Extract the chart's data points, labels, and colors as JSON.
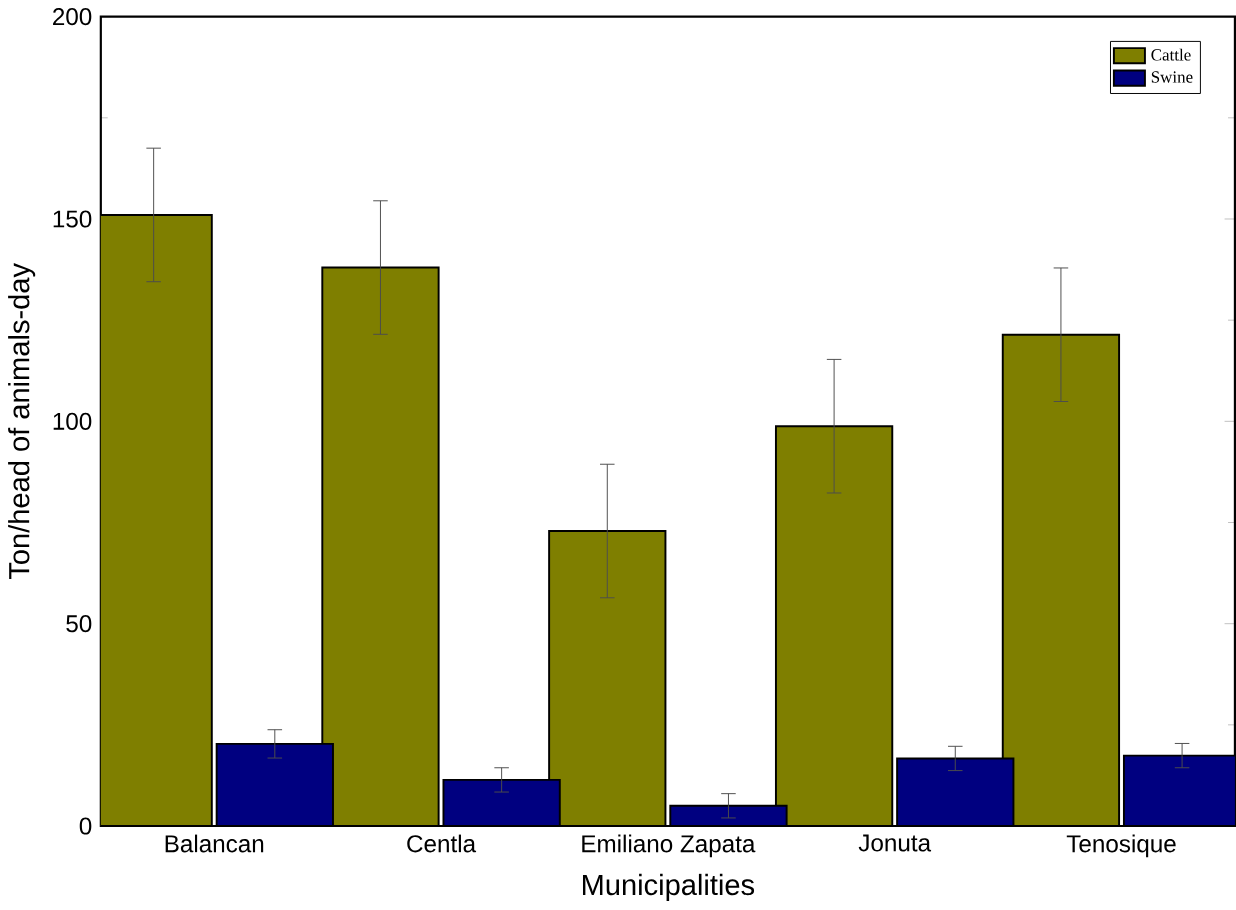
{
  "chart_data": {
    "type": "bar",
    "xlabel": "Municipalities",
    "ylabel": "Ton/head of animals-day",
    "categories": [
      "Balancan",
      "Centla",
      "Emiliano Zapata",
      "Jonuta",
      "Tenosique"
    ],
    "series": [
      {
        "name": "Cattle",
        "color": "#7f7f00",
        "values": [
          151,
          138,
          72.9,
          98.8,
          121.4
        ],
        "errors": [
          16.5,
          16.5,
          16.5,
          16.5,
          16.5
        ]
      },
      {
        "name": "Swine",
        "color": "#000080",
        "values": [
          20.3,
          11.4,
          5,
          16.7,
          17.4
        ],
        "errors": [
          3.5,
          3,
          3,
          3,
          3
        ]
      }
    ],
    "ylim": [
      0,
      200
    ],
    "yticks": [
      0,
      50,
      100,
      150,
      200
    ],
    "grid": false,
    "legend": "top right"
  }
}
